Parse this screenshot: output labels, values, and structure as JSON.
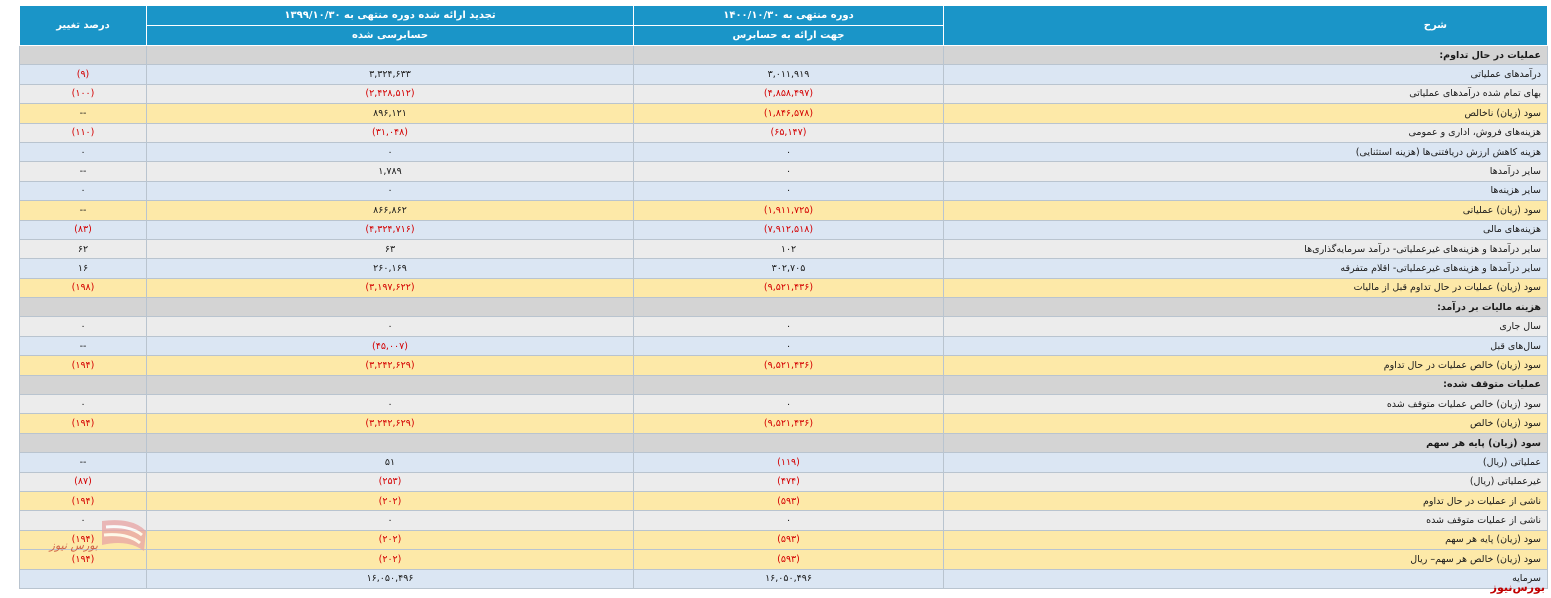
{
  "header": {
    "col_desc": "شرح",
    "col_p1": "دوره منتهی به ۱۴۰۰/۱۰/۳۰",
    "col_p1_sub": "جهت ارائه به حسابرس",
    "col_p2": "تجدید ارائه شده دوره منتهی به ۱۳۹۹/۱۰/۳۰",
    "col_p2_sub": "حسابرسی شده",
    "col_pct": "درصد تغییر"
  },
  "rows": [
    {
      "type": "sec",
      "desc": "عملیات در حال تداوم:",
      "p1": "",
      "p2": "",
      "pct": ""
    },
    {
      "type": "a",
      "desc": "درآمدهای عملیاتی",
      "p1": "۳,۰۱۱,۹۱۹",
      "p2": "۳,۳۲۴,۶۳۳",
      "pct": "(۹)"
    },
    {
      "type": "b",
      "desc": "بهای تمام شده درآمدهای عملیاتی",
      "p1": "(۴,۸۵۸,۴۹۷)",
      "p2": "(۲,۴۲۸,۵۱۲)",
      "pct": "(۱۰۰)"
    },
    {
      "type": "hl",
      "desc": "سود (زیان) ناخالص",
      "p1": "(۱,۸۴۶,۵۷۸)",
      "p2": "۸۹۶,۱۲۱",
      "pct": "--"
    },
    {
      "type": "b",
      "desc": "هزینه‌های فروش، اداری و عمومی",
      "p1": "(۶۵,۱۴۷)",
      "p2": "(۳۱,۰۴۸)",
      "pct": "(۱۱۰)"
    },
    {
      "type": "a",
      "desc": "هزینه کاهش ارزش دریافتنی‌ها (هزینه استثنایی)",
      "p1": "۰",
      "p2": "۰",
      "pct": "۰"
    },
    {
      "type": "b",
      "desc": "سایر درآمدها",
      "p1": "۰",
      "p2": "۱,۷۸۹",
      "pct": "--"
    },
    {
      "type": "a",
      "desc": "سایر هزینه‌ها",
      "p1": "۰",
      "p2": "۰",
      "pct": "۰"
    },
    {
      "type": "hl",
      "desc": "سود (زیان) عملیاتی",
      "p1": "(۱,۹۱۱,۷۲۵)",
      "p2": "۸۶۶,۸۶۲",
      "pct": "--"
    },
    {
      "type": "a",
      "desc": "هزینه‌های مالی",
      "p1": "(۷,۹۱۲,۵۱۸)",
      "p2": "(۴,۳۲۴,۷۱۶)",
      "pct": "(۸۳)"
    },
    {
      "type": "b",
      "desc": "سایر درآمدها و هزینه‌های غیرعملیاتی- درآمد سرمایه‌گذاری‌ها",
      "p1": "۱۰۲",
      "p2": "۶۳",
      "pct": "۶۲"
    },
    {
      "type": "a",
      "desc": "سایر درآمدها و هزینه‌های غیرعملیاتی- اقلام متفرقه",
      "p1": "۳۰۲,۷۰۵",
      "p2": "۲۶۰,۱۶۹",
      "pct": "۱۶"
    },
    {
      "type": "hl",
      "desc": "سود (زیان) عملیات در حال تداوم قبل از مالیات",
      "p1": "(۹,۵۲۱,۴۳۶)",
      "p2": "(۳,۱۹۷,۶۲۲)",
      "pct": "(۱۹۸)"
    },
    {
      "type": "sec",
      "desc": "هزینه مالیات بر درآمد:",
      "p1": "",
      "p2": "",
      "pct": ""
    },
    {
      "type": "b",
      "desc": "سال جاری",
      "p1": "۰",
      "p2": "۰",
      "pct": "۰"
    },
    {
      "type": "a",
      "desc": "سال‌های قبل",
      "p1": "۰",
      "p2": "(۴۵,۰۰۷)",
      "pct": "--"
    },
    {
      "type": "hl",
      "desc": "سود (زیان) خالص عملیات در حال تداوم",
      "p1": "(۹,۵۲۱,۴۳۶)",
      "p2": "(۳,۲۴۲,۶۲۹)",
      "pct": "(۱۹۴)"
    },
    {
      "type": "sec",
      "desc": "عملیات متوقف شده:",
      "p1": "",
      "p2": "",
      "pct": ""
    },
    {
      "type": "b",
      "desc": "سود (زیان) خالص عملیات متوقف شده",
      "p1": "۰",
      "p2": "۰",
      "pct": "۰"
    },
    {
      "type": "hl",
      "desc": "سود (زیان) خالص",
      "p1": "(۹,۵۲۱,۴۳۶)",
      "p2": "(۳,۲۴۲,۶۲۹)",
      "pct": "(۱۹۴)"
    },
    {
      "type": "sec",
      "desc": "سود (زیان) پایه هر سهم",
      "p1": "",
      "p2": "",
      "pct": ""
    },
    {
      "type": "a",
      "desc": "عملیاتی (ریال)",
      "p1": "(۱۱۹)",
      "p2": "۵۱",
      "pct": "--"
    },
    {
      "type": "b",
      "desc": "غیرعملیاتی (ریال)",
      "p1": "(۴۷۴)",
      "p2": "(۲۵۳)",
      "pct": "(۸۷)"
    },
    {
      "type": "hl",
      "desc": "ناشی از عملیات در حال تداوم",
      "p1": "(۵۹۳)",
      "p2": "(۲۰۲)",
      "pct": "(۱۹۴)"
    },
    {
      "type": "b",
      "desc": "ناشی از عملیات متوقف شده",
      "p1": "۰",
      "p2": "۰",
      "pct": "۰"
    },
    {
      "type": "hl",
      "desc": "سود (زیان) پایه هر سهم",
      "p1": "(۵۹۳)",
      "p2": "(۲۰۲)",
      "pct": "(۱۹۴)"
    },
    {
      "type": "hl",
      "desc": "سود (زیان) خالص هر سهم– ریال",
      "p1": "(۵۹۳)",
      "p2": "(۲۰۲)",
      "pct": "(۱۹۴)"
    },
    {
      "type": "foot",
      "desc": "سرمایه",
      "p1": "۱۶,۰۵۰,۴۹۶",
      "p2": "۱۶,۰۵۰,۴۹۶",
      "pct": ""
    }
  ],
  "watermark": "بورس‌نیوز",
  "logo_text": "بورس نیوز",
  "colors": {
    "header": "#1a95c8",
    "negative": "#d40000",
    "highlight": "#fde9a8",
    "alt": "#dbe6f3",
    "section": "#d4d4d4"
  }
}
